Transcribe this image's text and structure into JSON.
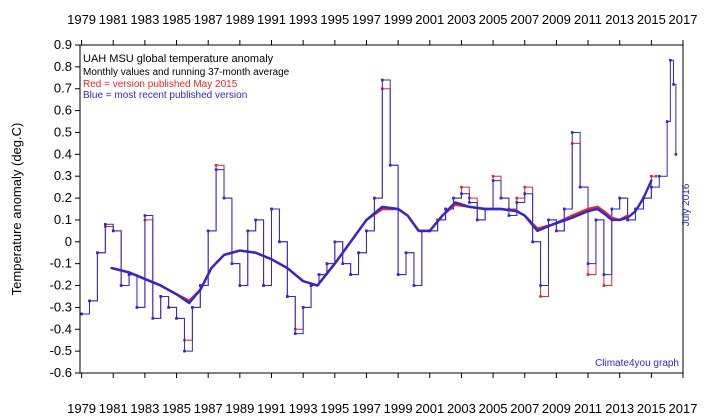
{
  "chart_data": {
    "type": "line",
    "title": "UAH MSU global temperature anomaly",
    "subtitle": "Monthly values and running 37-month average",
    "ylabel": "Temperature anomaly (deg.C)",
    "xlabel": "",
    "xlim": [
      1978.9,
      2017.0
    ],
    "ylim": [
      -0.6,
      0.9
    ],
    "y_ticks": [
      "0.9",
      "0.8",
      "0.7",
      "0.6",
      "0.5",
      "0.4",
      "0.3",
      "0.2",
      "0.1",
      "0",
      "-0.1",
      "-0.2",
      "-0.3",
      "-0.4",
      "-0.5",
      "-0.6"
    ],
    "x_tick_labels": [
      "1979",
      "1981",
      "1983",
      "1985",
      "1987",
      "1989",
      "1991",
      "1993",
      "1995",
      "1997",
      "1999",
      "2001",
      "2003",
      "2005",
      "2007",
      "2009",
      "2011",
      "2013",
      "2015",
      "2017"
    ],
    "grid": false,
    "annotations": {
      "legend_red": "Red = version published May 2015",
      "legend_blue": "Blue = most recent published version",
      "date_label": "July 2016",
      "credit": "Climate4you graph"
    },
    "colors": {
      "red_series": "#e8262b",
      "blue_series": "#2a2ad0",
      "axis": "#000000"
    },
    "series": [
      {
        "name": "Red = version published May 2015",
        "kind": "monthly",
        "x": [
          1979.0,
          1979.5,
          1980.0,
          1980.5,
          1981.0,
          1981.5,
          1982.0,
          1982.5,
          1983.0,
          1983.5,
          1984.0,
          1984.5,
          1985.0,
          1985.5,
          1986.0,
          1986.5,
          1987.0,
          1987.5,
          1988.0,
          1988.5,
          1989.0,
          1989.5,
          1990.0,
          1990.5,
          1991.0,
          1991.5,
          1992.0,
          1992.5,
          1993.0,
          1993.5,
          1994.0,
          1994.5,
          1995.0,
          1995.5,
          1996.0,
          1996.5,
          1997.0,
          1997.5,
          1998.0,
          1998.5,
          1999.0,
          1999.5,
          2000.0,
          2000.5,
          2001.0,
          2001.5,
          2002.0,
          2002.5,
          2003.0,
          2003.5,
          2004.0,
          2004.5,
          2005.0,
          2005.5,
          2006.0,
          2006.5,
          2007.0,
          2007.5,
          2008.0,
          2008.5,
          2009.0,
          2009.5,
          2010.0,
          2010.5,
          2011.0,
          2011.5,
          2012.0,
          2012.5,
          2013.0,
          2013.5,
          2014.0,
          2014.5,
          2015.0,
          2015.3
        ],
        "y": [
          -0.33,
          -0.27,
          -0.05,
          0.07,
          0.05,
          -0.2,
          -0.15,
          -0.3,
          0.1,
          -0.35,
          -0.25,
          -0.3,
          -0.35,
          -0.45,
          -0.3,
          -0.2,
          0.05,
          0.35,
          0.2,
          -0.1,
          -0.2,
          0.05,
          0.1,
          -0.2,
          0.15,
          0.0,
          -0.25,
          -0.4,
          -0.3,
          -0.2,
          -0.15,
          -0.1,
          0.0,
          -0.1,
          -0.15,
          -0.05,
          0.05,
          0.2,
          0.7,
          0.35,
          -0.15,
          -0.05,
          -0.2,
          0.05,
          0.05,
          0.1,
          0.15,
          0.2,
          0.25,
          0.2,
          0.1,
          0.15,
          0.3,
          0.2,
          0.15,
          0.2,
          0.25,
          0.0,
          -0.25,
          0.1,
          0.05,
          0.15,
          0.45,
          0.25,
          -0.15,
          0.1,
          -0.2,
          0.15,
          0.2,
          0.1,
          0.15,
          0.2,
          0.3,
          0.3
        ]
      },
      {
        "name": "Blue = most recent published version",
        "kind": "monthly",
        "x": [
          1979.0,
          1979.5,
          1980.0,
          1980.5,
          1981.0,
          1981.5,
          1982.0,
          1982.5,
          1983.0,
          1983.5,
          1984.0,
          1984.5,
          1985.0,
          1985.5,
          1986.0,
          1986.5,
          1987.0,
          1987.5,
          1988.0,
          1988.5,
          1989.0,
          1989.5,
          1990.0,
          1990.5,
          1991.0,
          1991.5,
          1992.0,
          1992.5,
          1993.0,
          1993.5,
          1994.0,
          1994.5,
          1995.0,
          1995.5,
          1996.0,
          1996.5,
          1997.0,
          1997.5,
          1998.0,
          1998.5,
          1999.0,
          1999.5,
          2000.0,
          2000.5,
          2001.0,
          2001.5,
          2002.0,
          2002.5,
          2003.0,
          2003.5,
          2004.0,
          2004.5,
          2005.0,
          2005.5,
          2006.0,
          2006.5,
          2007.0,
          2007.5,
          2008.0,
          2008.5,
          2009.0,
          2009.5,
          2010.0,
          2010.5,
          2011.0,
          2011.5,
          2012.0,
          2012.5,
          2013.0,
          2013.5,
          2014.0,
          2014.5,
          2015.0,
          2015.5,
          2016.0,
          2016.2,
          2016.4,
          2016.55
        ],
        "y": [
          -0.33,
          -0.27,
          -0.05,
          0.08,
          0.05,
          -0.2,
          -0.15,
          -0.3,
          0.12,
          -0.35,
          -0.25,
          -0.3,
          -0.35,
          -0.5,
          -0.3,
          -0.2,
          0.05,
          0.33,
          0.2,
          -0.1,
          -0.2,
          0.05,
          0.1,
          -0.2,
          0.15,
          0.0,
          -0.25,
          -0.42,
          -0.3,
          -0.2,
          -0.15,
          -0.1,
          0.0,
          -0.1,
          -0.15,
          -0.05,
          0.05,
          0.2,
          0.74,
          0.35,
          -0.15,
          -0.05,
          -0.2,
          0.05,
          0.05,
          0.1,
          0.15,
          0.2,
          0.22,
          0.18,
          0.1,
          0.15,
          0.28,
          0.2,
          0.12,
          0.18,
          0.22,
          0.0,
          -0.2,
          0.1,
          0.05,
          0.15,
          0.5,
          0.25,
          -0.1,
          0.1,
          -0.15,
          0.15,
          0.2,
          0.1,
          0.15,
          0.2,
          0.25,
          0.3,
          0.55,
          0.83,
          0.72,
          0.4
        ]
      },
      {
        "name": "Red running 37-month average",
        "kind": "average",
        "x": [
          1980.9,
          1982.0,
          1983.0,
          1984.0,
          1985.0,
          1985.8,
          1986.5,
          1987.2,
          1988.0,
          1989.0,
          1990.0,
          1991.0,
          1992.0,
          1993.0,
          1993.9,
          1995.0,
          1996.0,
          1997.0,
          1998.0,
          1999.0,
          1999.6,
          2000.3,
          2001.0,
          2001.8,
          2002.6,
          2003.5,
          2004.5,
          2005.5,
          2006.5,
          2007.0,
          2007.8,
          2008.8,
          2010.0,
          2011.0,
          2011.6,
          2012.0,
          2012.5,
          2013.0,
          2013.5
        ],
        "y": [
          -0.12,
          -0.14,
          -0.17,
          -0.2,
          -0.24,
          -0.27,
          -0.22,
          -0.12,
          -0.06,
          -0.04,
          -0.05,
          -0.08,
          -0.12,
          -0.18,
          -0.2,
          -0.1,
          0.0,
          0.1,
          0.15,
          0.15,
          0.12,
          0.05,
          0.05,
          0.12,
          0.17,
          0.16,
          0.15,
          0.15,
          0.14,
          0.12,
          0.06,
          0.08,
          0.12,
          0.15,
          0.16,
          0.14,
          0.11,
          0.1,
          0.12
        ]
      },
      {
        "name": "Blue running 37-month average",
        "kind": "average",
        "x": [
          1980.9,
          1982.0,
          1983.0,
          1984.0,
          1985.0,
          1985.8,
          1986.5,
          1987.2,
          1988.0,
          1989.0,
          1990.0,
          1991.0,
          1992.0,
          1993.0,
          1993.9,
          1995.0,
          1996.0,
          1997.0,
          1998.0,
          1999.0,
          1999.6,
          2000.3,
          2001.0,
          2001.8,
          2002.6,
          2003.5,
          2004.5,
          2005.5,
          2006.5,
          2007.0,
          2007.8,
          2008.8,
          2010.0,
          2011.0,
          2011.6,
          2012.0,
          2012.5,
          2013.0,
          2013.5,
          2014.0,
          2014.5,
          2015.0
        ],
        "y": [
          -0.12,
          -0.14,
          -0.17,
          -0.2,
          -0.24,
          -0.28,
          -0.22,
          -0.12,
          -0.06,
          -0.04,
          -0.05,
          -0.08,
          -0.12,
          -0.18,
          -0.2,
          -0.1,
          0.0,
          0.1,
          0.16,
          0.15,
          0.12,
          0.05,
          0.05,
          0.12,
          0.18,
          0.16,
          0.15,
          0.15,
          0.14,
          0.12,
          0.05,
          0.08,
          0.11,
          0.14,
          0.15,
          0.13,
          0.1,
          0.1,
          0.11,
          0.14,
          0.2,
          0.28
        ]
      }
    ]
  }
}
